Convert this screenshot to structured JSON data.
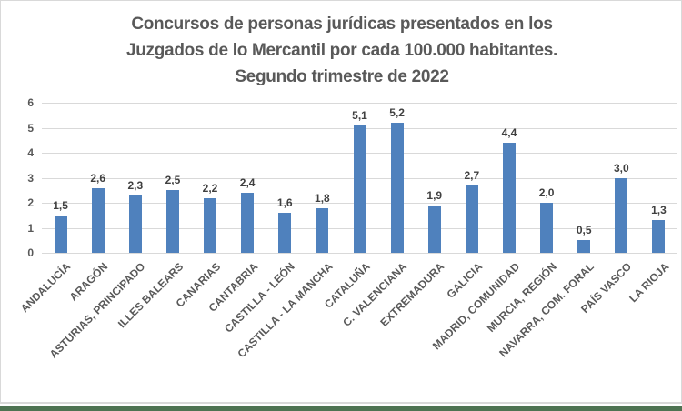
{
  "window": {
    "bottom_bar_color": "#4e7352",
    "frame_border_color": "#d9d9d9"
  },
  "chart_data": {
    "type": "bar",
    "title_lines": [
      "Concursos de personas jurídicas presentados en los",
      "Juzgados de lo Mercantil por cada 100.000 habitantes.",
      "Segundo trimestre de 2022"
    ],
    "categories": [
      "ANDALUCÍA",
      "ARAGÓN",
      "ASTURIAS, PRINCIPADO",
      "ILLES BALEARS",
      "CANARIAS",
      "CANTABRIA",
      "CASTILLA - LEÓN",
      "CASTILLA - LA MANCHA",
      "CATALUÑA",
      "C. VALENCIANA",
      "EXTREMADURA",
      "GALICIA",
      "MADRID, COMUNIDAD",
      "MURCIA, REGIÓN",
      "NAVARRA, COM. FORAL",
      "PAÍS VASCO",
      "LA RIOJA"
    ],
    "values": [
      1.5,
      2.6,
      2.3,
      2.5,
      2.2,
      2.4,
      1.6,
      1.8,
      5.1,
      5.2,
      1.9,
      2.7,
      4.4,
      2.0,
      0.5,
      3.0,
      1.3
    ],
    "value_labels": [
      "1,5",
      "2,6",
      "2,3",
      "2,5",
      "2,2",
      "2,4",
      "1,6",
      "1,8",
      "5,1",
      "5,2",
      "1,9",
      "2,7",
      "4,4",
      "2,0",
      "0,5",
      "3,0",
      "1,3"
    ],
    "yticks": [
      0,
      1,
      2,
      3,
      4,
      5,
      6
    ],
    "ylim": [
      0,
      6
    ],
    "xlabel": "",
    "ylabel": "",
    "grid": true,
    "legend": "none",
    "bar_color": "#4f81bd",
    "gridline_color": "#d9d9d9",
    "axis_label_color": "#595959",
    "data_label_color": "#404040",
    "title_color": "#595959"
  }
}
